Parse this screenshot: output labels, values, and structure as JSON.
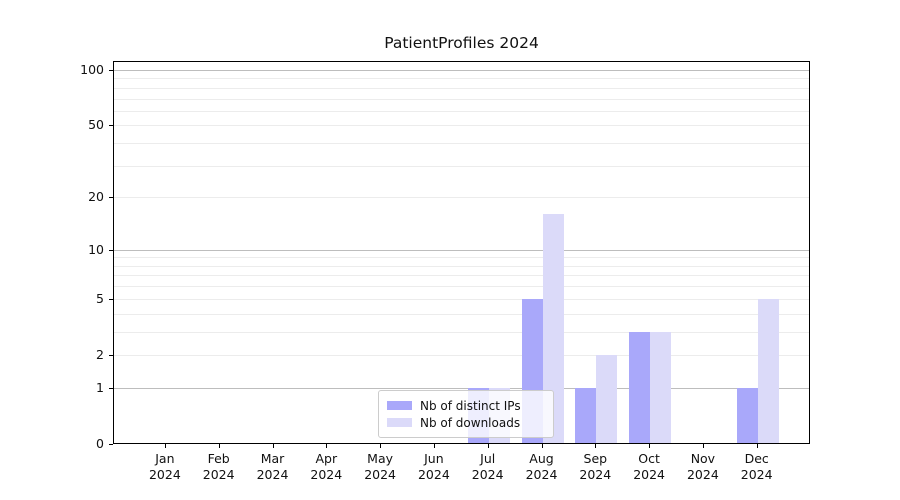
{
  "chart_data": {
    "type": "bar",
    "title": "PatientProfiles 2024",
    "xlabel": "",
    "ylabel": "",
    "categories": [
      "Jan 2024",
      "Feb 2024",
      "Mar 2024",
      "Apr 2024",
      "May 2024",
      "Jun 2024",
      "Jul 2024",
      "Aug 2024",
      "Sep 2024",
      "Oct 2024",
      "Nov 2024",
      "Dec 2024"
    ],
    "series": [
      {
        "name": "Nb of distinct IPs",
        "color": "#a9a8fa",
        "values": [
          0,
          0,
          0,
          0,
          0,
          0,
          1,
          5,
          1,
          3,
          0,
          1
        ]
      },
      {
        "name": "Nb of downloads",
        "color": "#dbdaf9",
        "values": [
          0,
          0,
          0,
          0,
          0,
          0,
          1,
          16,
          2,
          3,
          0,
          5
        ]
      }
    ],
    "y_scale": "log1p",
    "ylim": [
      0,
      113
    ],
    "y_tick_values": [
      0,
      1,
      2,
      5,
      10,
      20,
      50,
      100
    ],
    "y_tick_labels": [
      "0",
      "1",
      "2",
      "5",
      "10",
      "20",
      "50",
      "100"
    ],
    "gridlines": {
      "major_values": [
        1,
        10,
        100
      ],
      "minor_values": [
        2,
        3,
        4,
        5,
        6,
        7,
        8,
        9,
        20,
        30,
        40,
        50,
        60,
        70,
        80,
        90
      ],
      "major_color": "#bdbdbd",
      "minor_color": "#ececec"
    },
    "legend": {
      "position": "lower center",
      "items": [
        "Nb of distinct IPs",
        "Nb of downloads"
      ]
    }
  }
}
